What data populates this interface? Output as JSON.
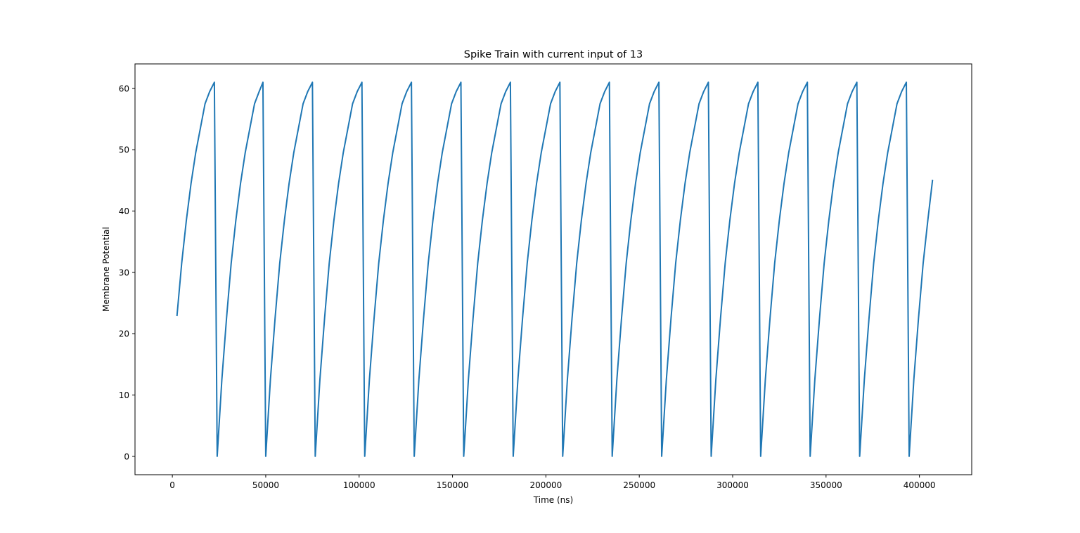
{
  "chart_data": {
    "type": "line",
    "title": "Spike Train with current input of 13",
    "xlabel": "Time (ns)",
    "ylabel": "Membrane Potential",
    "xlim": [
      -20000,
      428000
    ],
    "ylim": [
      -3,
      64
    ],
    "xticks": [
      0,
      50000,
      100000,
      150000,
      200000,
      250000,
      300000,
      350000,
      400000
    ],
    "xtick_labels": [
      "0",
      "50000",
      "100000",
      "150000",
      "200000",
      "250000",
      "300000",
      "350000",
      "400000"
    ],
    "yticks": [
      0,
      10,
      20,
      30,
      40,
      50,
      60
    ],
    "ytick_labels": [
      "0",
      "10",
      "20",
      "30",
      "40",
      "50",
      "60"
    ],
    "grid": false,
    "legend": "none",
    "line_color": "#1f77b4",
    "series": [
      {
        "x": [
          2500,
          5000,
          7500,
          10000,
          12500,
          15000,
          17500,
          20000,
          22500,
          24000,
          26500,
          29000,
          31500,
          34000,
          36500,
          39000,
          41500,
          44000,
          46500,
          48500,
          50000,
          52500,
          55000,
          57500,
          60000,
          62500,
          65000,
          67500,
          70000,
          72500,
          75000,
          76500,
          79000,
          81500,
          84000,
          86500,
          89000,
          91500,
          94000,
          96500,
          99000,
          101500,
          103000,
          105500,
          108000,
          110500,
          113000,
          115500,
          118000,
          120500,
          123000,
          125500,
          128000,
          129500,
          132000,
          134500,
          137000,
          139500,
          142000,
          144500,
          147000,
          149500,
          152000,
          154500,
          156000,
          158500,
          161000,
          163500,
          166000,
          168500,
          171000,
          173500,
          176000,
          178500,
          181000,
          182500,
          185000,
          187500,
          190000,
          192500,
          195000,
          197500,
          200000,
          202500,
          205000,
          207500,
          209000,
          211500,
          214000,
          216500,
          219000,
          221500,
          224000,
          226500,
          229000,
          231500,
          234000,
          235500,
          238000,
          240500,
          243000,
          245500,
          248000,
          250500,
          253000,
          255500,
          258000,
          260500,
          262000,
          264500,
          267000,
          269500,
          272000,
          274500,
          277000,
          279500,
          282000,
          284500,
          287000,
          288500,
          291000,
          293500,
          296000,
          298500,
          301000,
          303500,
          306000,
          308500,
          311000,
          313500,
          315000,
          317500,
          320000,
          322500,
          325000,
          327500,
          330000,
          332500,
          335000,
          337500,
          340000,
          341500,
          344000,
          346500,
          349000,
          351500,
          354000,
          356500,
          359000,
          361500,
          364000,
          366500,
          368000,
          370500,
          373000,
          375500,
          378000,
          380500,
          383000,
          385500,
          388000,
          390500,
          393000,
          394500,
          397000,
          399500,
          402000,
          404500,
          407000
        ],
        "values": [
          23,
          31.5,
          38.5,
          44.5,
          49.5,
          53.5,
          57.5,
          59.5,
          61,
          0,
          12.5,
          22.5,
          31.5,
          38.5,
          44.5,
          49.5,
          53.5,
          57.5,
          59.5,
          61,
          0,
          12.5,
          22.5,
          31.5,
          38.5,
          44.5,
          49.5,
          53.5,
          57.5,
          59.5,
          61,
          0,
          12.5,
          22.5,
          31.5,
          38.5,
          44.5,
          49.5,
          53.5,
          57.5,
          59.5,
          61,
          0,
          12.5,
          22.5,
          31.5,
          38.5,
          44.5,
          49.5,
          53.5,
          57.5,
          59.5,
          61,
          0,
          12.5,
          22.5,
          31.5,
          38.5,
          44.5,
          49.5,
          53.5,
          57.5,
          59.5,
          61,
          0,
          12.5,
          22.5,
          31.5,
          38.5,
          44.5,
          49.5,
          53.5,
          57.5,
          59.5,
          61,
          0,
          12.5,
          22.5,
          31.5,
          38.5,
          44.5,
          49.5,
          53.5,
          57.5,
          59.5,
          61,
          0,
          12.5,
          22.5,
          31.5,
          38.5,
          44.5,
          49.5,
          53.5,
          57.5,
          59.5,
          61,
          0,
          12.5,
          22.5,
          31.5,
          38.5,
          44.5,
          49.5,
          53.5,
          57.5,
          59.5,
          61,
          0,
          12.5,
          22.5,
          31.5,
          38.5,
          44.5,
          49.5,
          53.5,
          57.5,
          59.5,
          61,
          0,
          12.5,
          22.5,
          31.5,
          38.5,
          44.5,
          49.5,
          53.5,
          57.5,
          59.5,
          61,
          0,
          12.5,
          22.5,
          31.5,
          38.5,
          44.5,
          49.5,
          53.5,
          57.5,
          59.5,
          61,
          0,
          12.5,
          22.5,
          31.5,
          38.5,
          44.5,
          49.5,
          53.5,
          57.5,
          59.5,
          61,
          0,
          12.5,
          22.5,
          31.5,
          38.5,
          44.5,
          49.5,
          53.5,
          57.5,
          59.5,
          61,
          0,
          12.5,
          22.5,
          31.5,
          38.5,
          45
        ]
      }
    ]
  }
}
